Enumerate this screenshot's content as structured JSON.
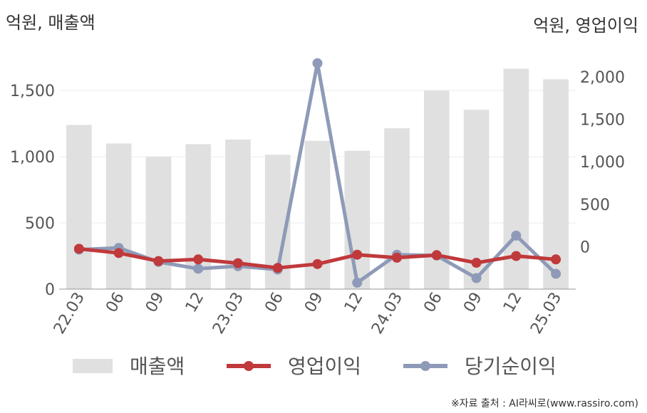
{
  "left_unit": "억원, 매출액",
  "right_unit": "억원, 영업이익",
  "source": "※자료 출처 : AI라씨로(www.rassiro.com)",
  "chart_data": {
    "type": "bar+line",
    "categories": [
      "22.03",
      "06",
      "09",
      "12",
      "23.03",
      "06",
      "09",
      "12",
      "24.03",
      "06",
      "09",
      "12",
      "25.03"
    ],
    "left_axis": {
      "label": "억원, 매출액",
      "ylim": [
        0,
        1700
      ],
      "ticks": [
        0,
        500,
        1000,
        1500
      ],
      "tick_labels": [
        "0",
        "500",
        "1,000",
        "1,500"
      ]
    },
    "right_axis": {
      "label": "억원, 영업이익",
      "ylim": [
        -500,
        2150
      ],
      "ticks": [
        0,
        500,
        1000,
        1500,
        2000
      ],
      "tick_labels": [
        "0",
        "500",
        "1,000",
        "1,500",
        "2,000"
      ]
    },
    "series": [
      {
        "name": "매출액",
        "kind": "bar",
        "axis": "left",
        "color": "#e0e0e0",
        "values": [
          1240,
          1100,
          1000,
          1095,
          1130,
          1015,
          1120,
          1045,
          1215,
          1500,
          1355,
          1665,
          1585
        ]
      },
      {
        "name": "영업이익",
        "kind": "line",
        "axis": "right",
        "color": "#c0393b",
        "values": [
          -25,
          -75,
          -170,
          -150,
          -195,
          -250,
          -205,
          -95,
          -130,
          -100,
          -190,
          -110,
          -150
        ]
      },
      {
        "name": "당기순이익",
        "kind": "line",
        "axis": "right",
        "color": "#8e9ab8",
        "values": [
          -35,
          -15,
          -180,
          -260,
          -230,
          -270,
          2160,
          -425,
          -95,
          -105,
          -370,
          130,
          -320
        ]
      }
    ],
    "grid": true,
    "legend_position": "bottom"
  }
}
